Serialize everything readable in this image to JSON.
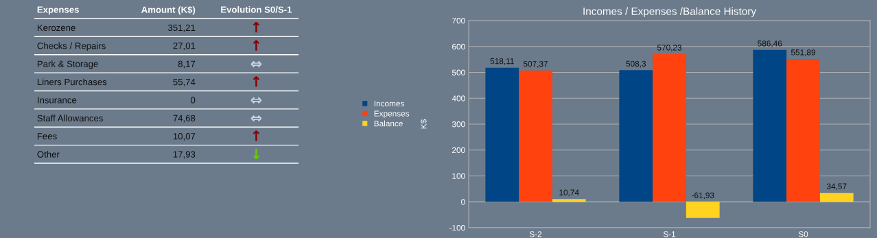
{
  "chart_data": [
    {
      "type": "other",
      "categories": [
        "Kerozene",
        "Checks / Repairs",
        "Park & Storage",
        "Liners Purchases",
        "Insurance",
        "Staff Allowances",
        "Fees",
        "Other"
      ],
      "value_labels": [
        "351,21",
        "27,01",
        "8,17",
        "55,74",
        "0",
        "74,68",
        "10,07",
        "17,93"
      ],
      "colors": [
        "#8b0000",
        "#8b0000",
        "#c9d6e3",
        "#8b0000",
        "#c9d6e3",
        "#c9d6e3",
        "#8b0000",
        "#66cc00"
      ],
      "annotations": [
        "Expenses",
        "Amount (K$)",
        "Evolution S0/S-1",
        {
          "text": "↑",
          "y": "Kerozene"
        },
        {
          "text": "↑",
          "y": "Checks / Repairs"
        },
        {
          "text": "⇔",
          "y": "Park & Storage"
        },
        {
          "text": "↑",
          "y": "Liners Purchases"
        },
        {
          "text": "⇔",
          "y": "Insurance"
        },
        {
          "text": "⇔",
          "y": "Staff Allowances"
        },
        {
          "text": "↑",
          "y": "Fees"
        },
        {
          "text": "↓",
          "y": "Other"
        }
      ]
    },
    {
      "type": "bar",
      "title": "Incomes / Expenses /Balance History",
      "ylabel": "K$",
      "categories": [
        "S-2",
        "S-1",
        "S0"
      ],
      "series": [
        {
          "name": "Incomes",
          "color": "#004586",
          "values": [
            518.11,
            508.3,
            586.46
          ],
          "value_labels": [
            "518,11",
            "508,3",
            "586,46"
          ]
        },
        {
          "name": "Expenses",
          "color": "#ff420e",
          "values": [
            507.37,
            570.23,
            551.89
          ],
          "value_labels": [
            "507,37",
            "570,23",
            "551,89"
          ]
        },
        {
          "name": "Balance",
          "color": "#ffd320",
          "values": [
            10.74,
            -61.93,
            34.57
          ],
          "value_labels": [
            "10,74",
            "-61,93",
            "34,57"
          ]
        }
      ],
      "ylim": [
        -100,
        700
      ],
      "yticks": [
        -100,
        0,
        100,
        200,
        300,
        400,
        500,
        600,
        700
      ],
      "grid": "y",
      "legend": "left"
    }
  ]
}
